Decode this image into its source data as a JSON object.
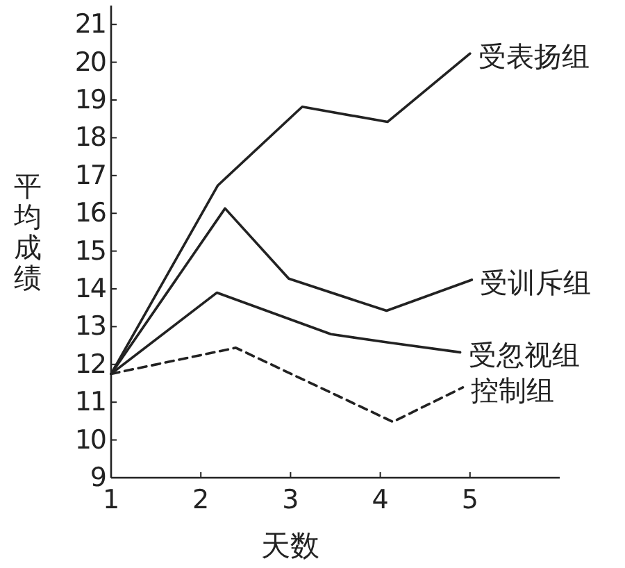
{
  "chart_data": {
    "type": "line",
    "xlabel": "天数",
    "ylabel": "平均成绩",
    "xlim": [
      1,
      6
    ],
    "ylim": [
      9,
      21.5
    ],
    "xticks": [
      1,
      2,
      3,
      4,
      5
    ],
    "yticks": [
      9,
      10,
      11,
      12,
      13,
      14,
      15,
      16,
      17,
      18,
      19,
      20,
      21
    ],
    "grid": false,
    "legend": false,
    "marker": "none",
    "series": [
      {
        "name": "受表扬组",
        "color": "#222222",
        "line_style": "solid",
        "x": [
          1,
          2.19,
          3.13,
          4.08,
          5.0
        ],
        "values": [
          11.75,
          16.74,
          18.82,
          18.42,
          20.23
        ]
      },
      {
        "name": "受训斥组",
        "color": "#222222",
        "line_style": "solid",
        "x": [
          1,
          2.27,
          2.98,
          4.07,
          5.02
        ],
        "values": [
          11.75,
          16.13,
          14.27,
          13.42,
          14.24
        ]
      },
      {
        "name": "受忽视组",
        "color": "#222222",
        "line_style": "solid",
        "x": [
          1,
          2.18,
          3.45,
          4.09,
          4.89
        ],
        "values": [
          11.75,
          13.9,
          12.8,
          12.58,
          12.32
        ]
      },
      {
        "name": "控制组",
        "color": "#222222",
        "line_style": "dashed",
        "x": [
          1,
          2.39,
          4.14,
          4.92
        ],
        "values": [
          11.75,
          12.44,
          10.48,
          11.39
        ]
      }
    ]
  }
}
